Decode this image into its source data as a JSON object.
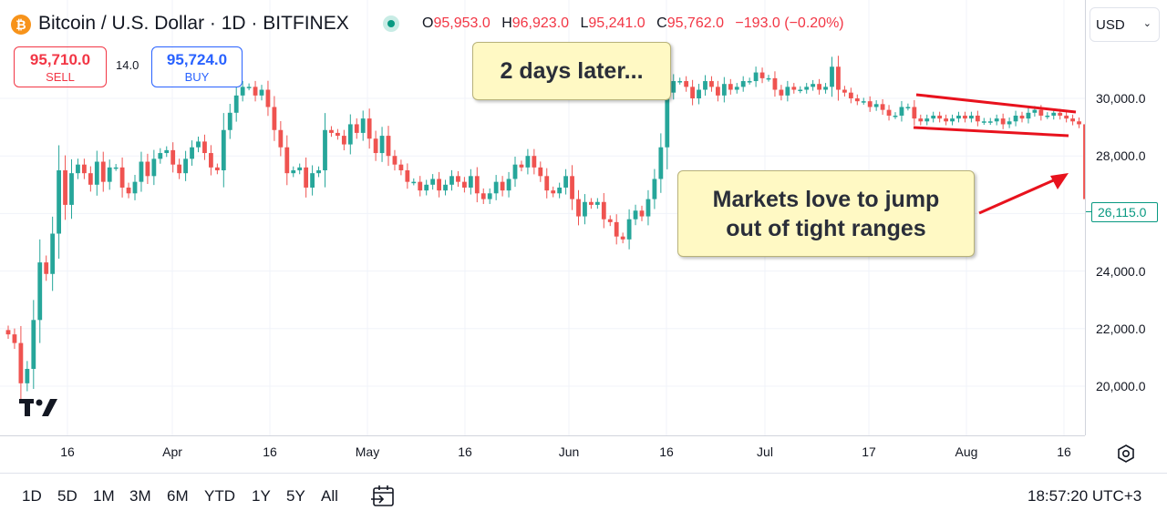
{
  "header": {
    "symbol": "Bitcoin / U.S. Dollar · 1D · BITFINEX",
    "icon": "bitcoin-icon",
    "ohlc": {
      "o_label": "O",
      "o_value": "95,953.0",
      "h_label": "H",
      "h_value": "96,923.0",
      "l_label": "L",
      "l_value": "95,241.0",
      "c_label": "C",
      "c_value": "95,762.0",
      "change": "−193.0 (−0.20%)"
    }
  },
  "trade": {
    "sell_price": "95,710.0",
    "sell_label": "SELL",
    "spread": "14.0",
    "buy_price": "95,724.0",
    "buy_label": "BUY"
  },
  "currency": {
    "value": "USD",
    "icon": "chevron-down-icon"
  },
  "annotations": {
    "note1": "2 days later...",
    "note2_line1": "Markets love to jump",
    "note2_line2": "out of tight ranges"
  },
  "price_axis": {
    "labels": [
      "30,000.0",
      "28,000.0",
      "24,000.0",
      "22,000.0",
      "20,000.0"
    ],
    "last_price": "26,115.0"
  },
  "time_axis": {
    "labels": [
      "16",
      "Apr",
      "16",
      "May",
      "16",
      "Jun",
      "16",
      "Jul",
      "17",
      "Aug",
      "16"
    ]
  },
  "toolbar": {
    "ranges": [
      "1D",
      "5D",
      "1M",
      "3M",
      "6M",
      "YTD",
      "1Y",
      "5Y",
      "All"
    ],
    "clock": "18:57:20 UTC+3"
  },
  "colors": {
    "up": "#26a69a",
    "down": "#ef5350",
    "annotation": "#e8121d",
    "note_bg": "#fff9c4"
  },
  "chart_data": {
    "type": "candlestick",
    "y_range": [
      18500,
      31800
    ],
    "closes": [
      21800,
      21500,
      20100,
      20600,
      22300,
      24300,
      23900,
      25300,
      27500,
      26300,
      27400,
      27700,
      27400,
      27000,
      27800,
      27100,
      27600,
      27600,
      26900,
      26700,
      27100,
      27800,
      27300,
      27900,
      28100,
      28200,
      27700,
      27400,
      27900,
      28300,
      28500,
      28100,
      27600,
      27500,
      28900,
      29500,
      30100,
      30400,
      30400,
      30100,
      30300,
      29700,
      28900,
      28300,
      27400,
      27500,
      27600,
      26900,
      27400,
      27500,
      28900,
      28800,
      28700,
      28400,
      29100,
      28800,
      29300,
      28600,
      28100,
      28700,
      28000,
      27700,
      27500,
      27100,
      27100,
      26800,
      27000,
      27200,
      26800,
      27000,
      27300,
      27100,
      26900,
      27300,
      26700,
      26500,
      26700,
      27100,
      26800,
      27200,
      27700,
      27600,
      28000,
      27600,
      27300,
      26800,
      26700,
      26900,
      27300,
      26500,
      25900,
      26400,
      26300,
      26400,
      25800,
      25700,
      25200,
      25100,
      25800,
      26100,
      25900,
      26500,
      27200,
      28300,
      30200,
      30600,
      30600,
      30400,
      30000,
      30300,
      30600,
      30400,
      30100,
      30500,
      30300,
      30400,
      30600,
      30600,
      30900,
      30700,
      30700,
      30300,
      30100,
      30400,
      30300,
      30300,
      30400,
      30500,
      30300,
      30400,
      31100,
      30300,
      30200,
      30000,
      29900,
      29900,
      29700,
      29800,
      29600,
      29400,
      29400,
      29700,
      29700,
      29300,
      29200,
      29300,
      29400,
      29300,
      29200,
      29300,
      29400,
      29300,
      29400,
      29200,
      29200,
      29200,
      29300,
      29100,
      29200,
      29400,
      29300,
      29500,
      29600,
      29400,
      29400,
      29500,
      29400,
      29300,
      29200,
      29100,
      26500,
      26100
    ]
  }
}
